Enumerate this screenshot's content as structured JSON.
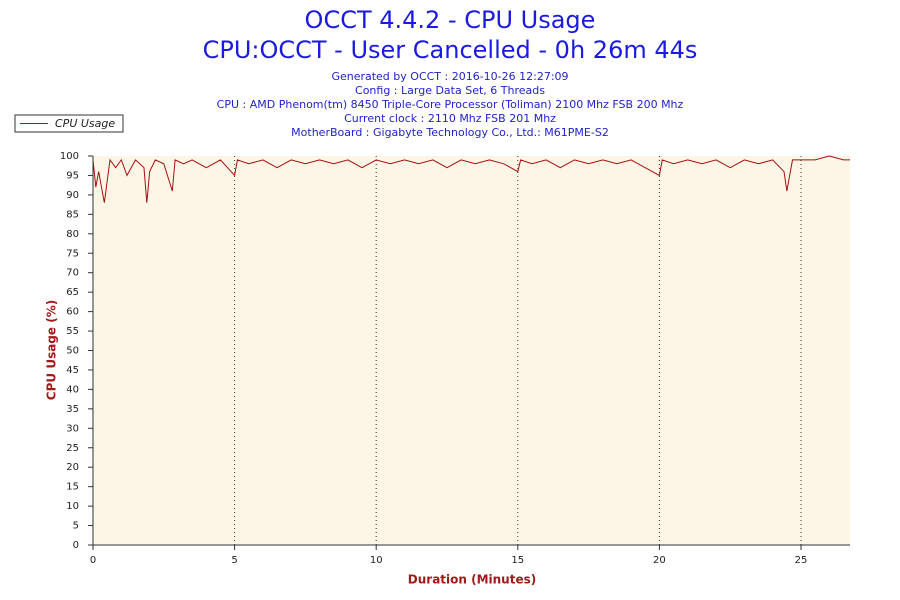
{
  "chart_data": {
    "type": "line",
    "title": "OCCT 4.4.2 - CPU Usage",
    "subtitle": "CPU:OCCT - User Cancelled - 0h 26m 44s",
    "annotations": [
      "Generated by OCCT : 2016-10-26 12:27:09",
      "Config : Large Data Set, 6 Threads",
      "CPU : AMD Phenom(tm) 8450 Triple-Core Processor (Toliman) 2100 Mhz FSB 200 Mhz",
      "Current clock : 2110 Mhz FSB 201 Mhz",
      "MotherBoard : Gigabyte Technology Co., Ltd.: M61PME-S2"
    ],
    "xlabel": "Duration (Minutes)",
    "ylabel": "CPU Usage (%)",
    "x": [
      0,
      0.1,
      0.2,
      0.4,
      0.6,
      0.8,
      1,
      1.2,
      1.5,
      1.8,
      1.9,
      2,
      2.2,
      2.5,
      2.8,
      2.9,
      3.2,
      3.5,
      4,
      4.5,
      5,
      5.1,
      5.5,
      6,
      6.5,
      7,
      7.5,
      8,
      8.5,
      9,
      9.5,
      10,
      10.5,
      11,
      11.5,
      12,
      12.5,
      13,
      13.5,
      14,
      14.5,
      15,
      15.1,
      15.5,
      16,
      16.5,
      17,
      17.5,
      18,
      18.5,
      19,
      19.5,
      20,
      20.1,
      20.5,
      21,
      21.5,
      22,
      22.5,
      23,
      23.5,
      24,
      24.4,
      24.5,
      24.7,
      25,
      25.5,
      26,
      26.5,
      26.73
    ],
    "series": [
      {
        "name": "CPU Usage",
        "color": "#a01010",
        "values": [
          99,
          92,
          96,
          88,
          99,
          97,
          99,
          95,
          99,
          97,
          88,
          96,
          99,
          98,
          91,
          99,
          98,
          99,
          97,
          99,
          95,
          99,
          98,
          99,
          97,
          99,
          98,
          99,
          98,
          99,
          97,
          99,
          98,
          99,
          98,
          99,
          97,
          99,
          98,
          99,
          98,
          96,
          99,
          98,
          99,
          97,
          99,
          98,
          99,
          98,
          99,
          97,
          95,
          99,
          98,
          99,
          98,
          99,
          97,
          99,
          98,
          99,
          96,
          91,
          99,
          99,
          99,
          100,
          99,
          99
        ]
      }
    ],
    "xlim": [
      0,
      26.73
    ],
    "ylim": [
      0,
      100
    ],
    "xticks": [
      0,
      5,
      10,
      15,
      20,
      25
    ],
    "yticks": [
      0,
      5,
      10,
      15,
      20,
      25,
      30,
      35,
      40,
      45,
      50,
      55,
      60,
      65,
      70,
      75,
      80,
      85,
      90,
      95,
      100
    ],
    "grid": true,
    "legend": "upper left"
  }
}
